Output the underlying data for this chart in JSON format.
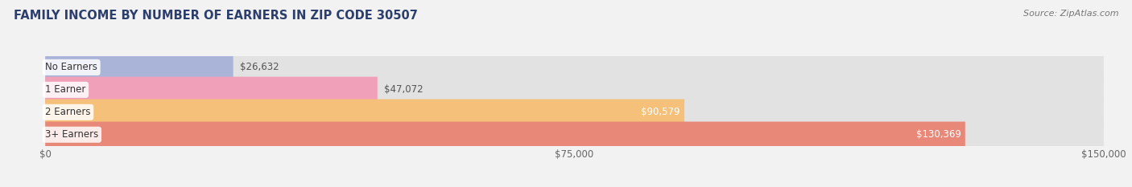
{
  "title": "FAMILY INCOME BY NUMBER OF EARNERS IN ZIP CODE 30507",
  "source": "Source: ZipAtlas.com",
  "categories": [
    "No Earners",
    "1 Earner",
    "2 Earners",
    "3+ Earners"
  ],
  "values": [
    26632,
    47072,
    90579,
    130369
  ],
  "bar_colors": [
    "#aab4d8",
    "#f0a0b8",
    "#f5c07a",
    "#e88878"
  ],
  "bar_labels": [
    "$26,632",
    "$47,072",
    "$90,579",
    "$130,369"
  ],
  "label_inside": [
    false,
    false,
    true,
    true
  ],
  "xmax": 150000,
  "xticks": [
    0,
    75000,
    150000
  ],
  "xtick_labels": [
    "$0",
    "$75,000",
    "$150,000"
  ],
  "background_color": "#f2f2f2",
  "bar_bg_color": "#e2e2e2",
  "title_color": "#2c3e6b",
  "source_color": "#777777",
  "title_fontsize": 10.5,
  "source_fontsize": 8,
  "category_fontsize": 8.5,
  "value_fontsize": 8.5,
  "xtick_fontsize": 8.5,
  "bar_height": 0.58
}
